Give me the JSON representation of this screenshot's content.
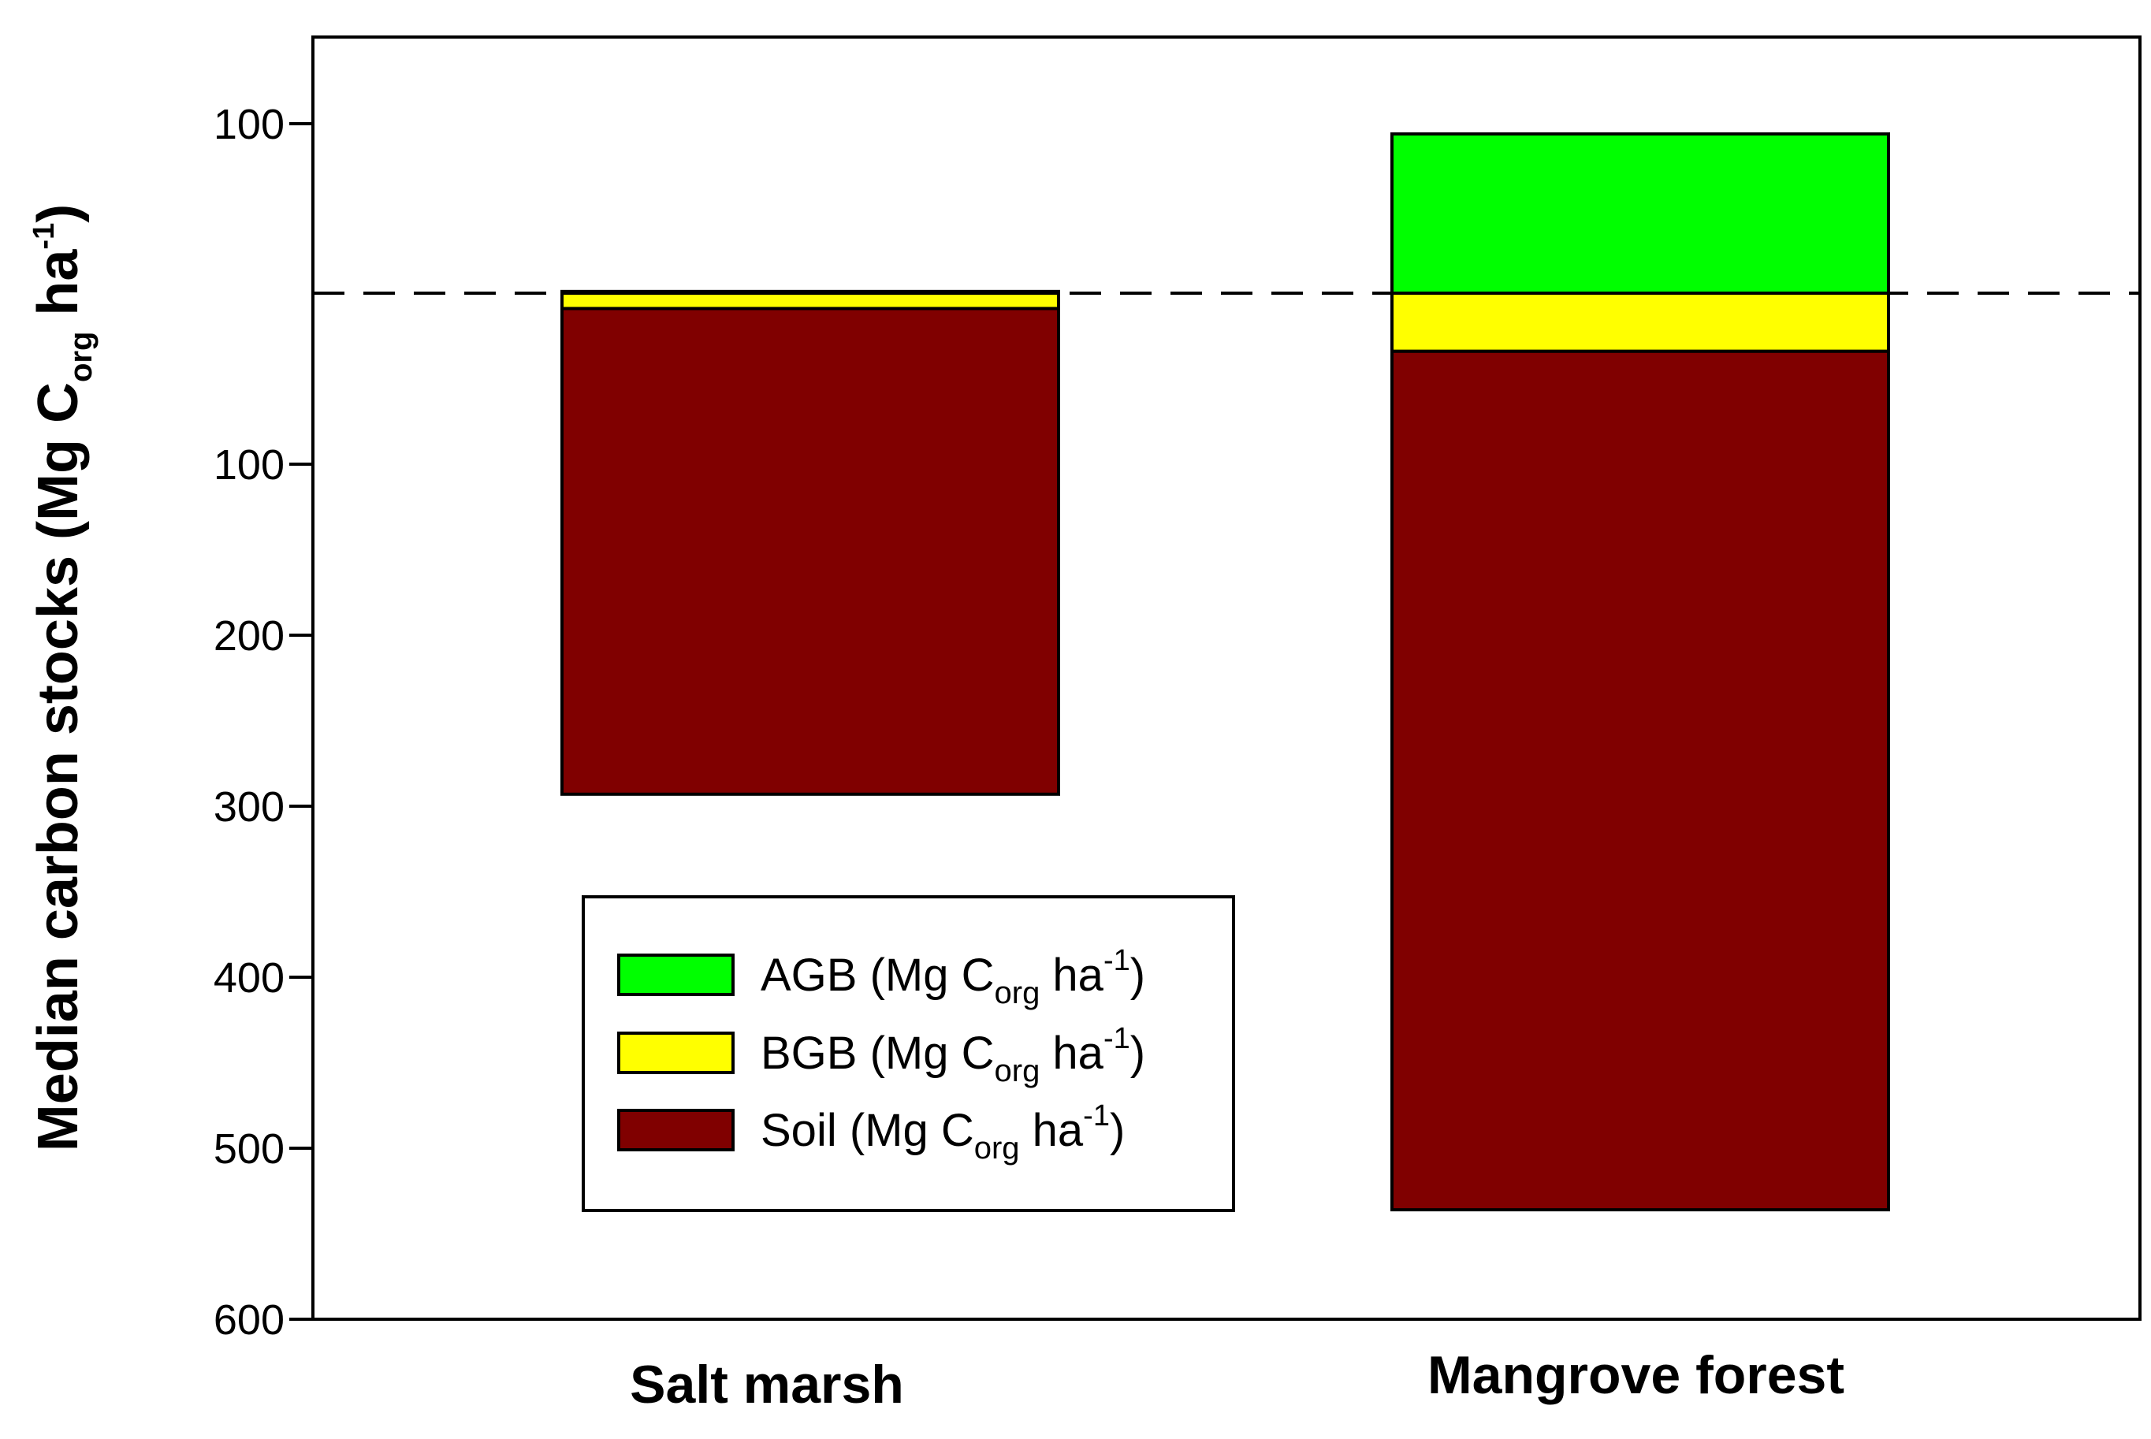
{
  "chart_data": {
    "type": "bar",
    "stacked": true,
    "diverging": true,
    "categories": [
      "Salt marsh",
      "Mangrove forest"
    ],
    "series": [
      {
        "name": "AGB",
        "direction": "up",
        "color": "#00ff00",
        "values": [
          1,
          94
        ]
      },
      {
        "name": "BGB",
        "direction": "down",
        "color": "#ffff00",
        "values": [
          9,
          34
        ]
      },
      {
        "name": "Soil",
        "direction": "down",
        "color": "#800000",
        "values": [
          284,
          502
        ]
      }
    ],
    "legend_unit": {
      "pre": "(Mg C",
      "sub": "org",
      "mid": " ha",
      "sup": "-1",
      "post": ")"
    },
    "ylabel": {
      "pre": "Median carbon stocks (Mg C",
      "sub": "org",
      "mid": " ha",
      "sup": "-1",
      "post": ")"
    },
    "y_ticks_up": [
      100
    ],
    "y_ticks_down": [
      100,
      200,
      300,
      400,
      500,
      600
    ],
    "ylim_up": [
      0,
      150
    ],
    "ylim_down": [
      0,
      600
    ],
    "baseline_style": "dashed",
    "grid": false,
    "legend_position": "center-bottom"
  }
}
